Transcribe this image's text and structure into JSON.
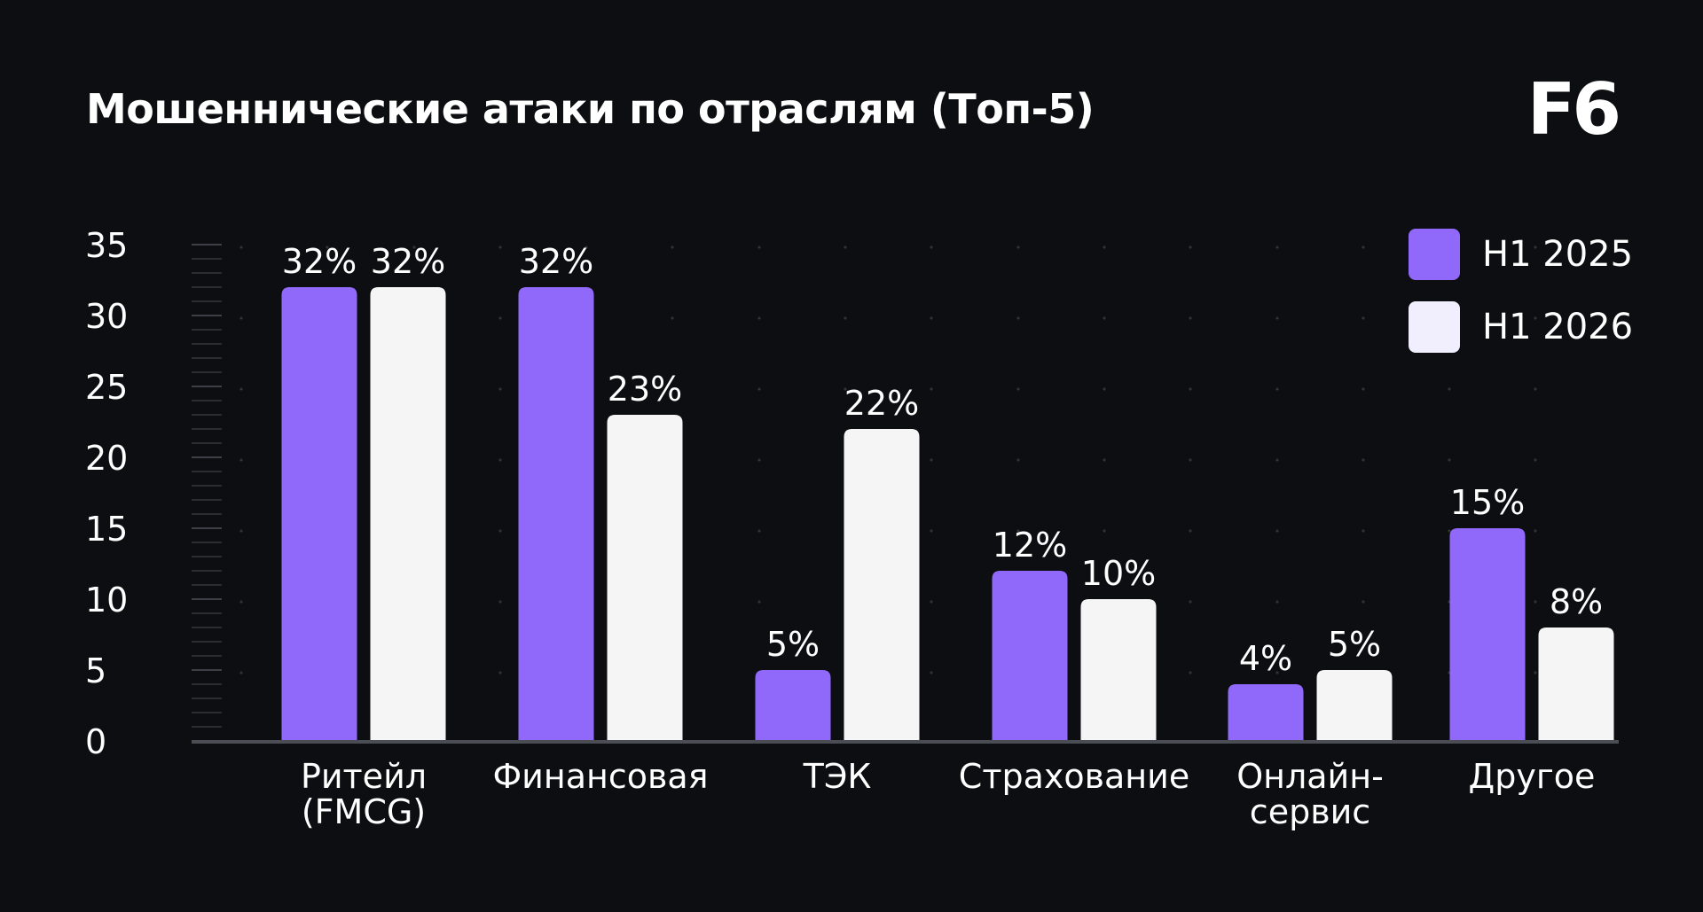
{
  "header": {
    "title": "Мошеннические атаки по отраслям (Топ-5)",
    "logo": "F6"
  },
  "chart_data": {
    "type": "bar",
    "title": "Мошеннические атаки по отраслям (Топ-5)",
    "xlabel": "",
    "ylabel": "",
    "categories": [
      [
        "Ритейл",
        "(FMCG)"
      ],
      [
        "Финансовая"
      ],
      [
        "ТЭК"
      ],
      [
        "Страхование"
      ],
      [
        "Онлайн-",
        "сервис"
      ],
      [
        "Другое"
      ]
    ],
    "series": [
      {
        "name": "H1 2025",
        "color": "#9169fa",
        "values": [
          32,
          32,
          5,
          12,
          4,
          15
        ],
        "labels": [
          "32%",
          "32%",
          "5%",
          "12%",
          "4%",
          "15%"
        ]
      },
      {
        "name": "H1 2026",
        "color": "#f5f5f5",
        "values": [
          32,
          23,
          22,
          10,
          5,
          8
        ],
        "labels": [
          "32%",
          "23%",
          "22%",
          "10%",
          "5%",
          "8%"
        ]
      }
    ],
    "ylim": [
      0,
      35
    ],
    "yticks": [
      "0",
      "5",
      "10",
      "15",
      "20",
      "25",
      "30",
      "35"
    ],
    "grid": "dotted",
    "legend_position": "top-right",
    "legend_swatch_colors": [
      "#9169fa",
      "#f1eefe"
    ]
  }
}
